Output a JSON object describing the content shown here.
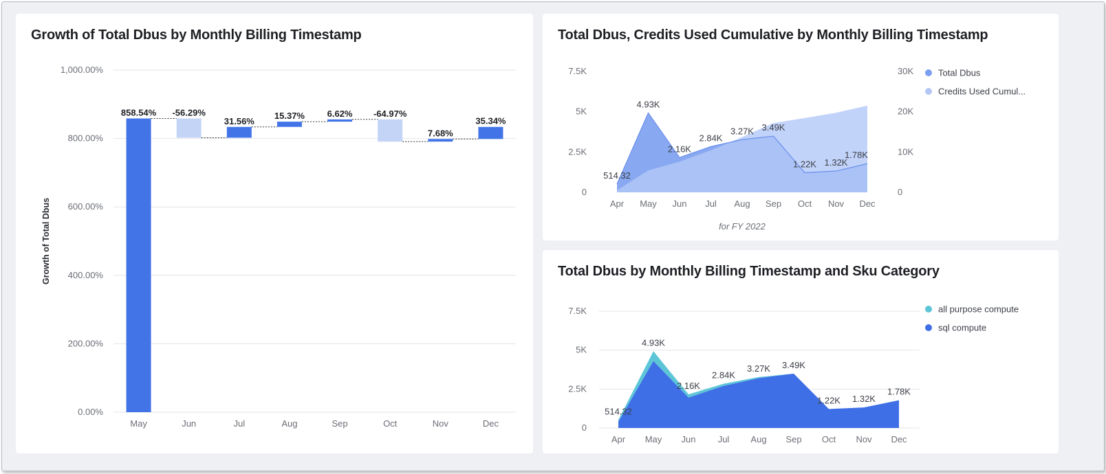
{
  "chart_data": [
    {
      "type": "waterfall",
      "title": "Growth of Total Dbus by Monthly Billing Timestamp",
      "ylabel": "Growth of Total Dbus",
      "xlabel": "",
      "ylim": [
        0,
        1000
      ],
      "yticks": [
        "0.00%",
        "200.00%",
        "400.00%",
        "600.00%",
        "800.00%",
        "1,000.00%"
      ],
      "ytick_values": [
        0,
        200,
        400,
        600,
        800,
        1000
      ],
      "categories": [
        "May",
        "Jun",
        "Jul",
        "Aug",
        "Sep",
        "Oct",
        "Nov",
        "Dec"
      ],
      "values": [
        858.54,
        -56.29,
        31.56,
        15.37,
        6.62,
        -64.97,
        7.68,
        35.34
      ],
      "labels": [
        "858.54%",
        "-56.29%",
        "31.56%",
        "15.37%",
        "6.62%",
        "-64.97%",
        "7.68%",
        "35.34%"
      ],
      "colors": {
        "positive": "#4274e8",
        "negative": "#c3d4f7"
      }
    },
    {
      "type": "area",
      "title": "Total Dbus, Credits Used Cumulative by Monthly Billing Timestamp",
      "subtitle": "for FY 2022",
      "categories": [
        "Apr",
        "May",
        "Jun",
        "Jul",
        "Aug",
        "Sep",
        "Oct",
        "Nov",
        "Dec"
      ],
      "ylim_left": [
        0,
        7500
      ],
      "yticks_left": [
        "0",
        "2.5K",
        "5K",
        "7.5K"
      ],
      "ylim_right": [
        0,
        30000
      ],
      "yticks_right": [
        "0",
        "10K",
        "20K",
        "30K"
      ],
      "series": [
        {
          "name": "Total Dbus",
          "axis": "left",
          "color": "#7b9ef0",
          "values": [
            514.32,
            4930,
            2160,
            2840,
            3270,
            3490,
            1220,
            1320,
            1780
          ],
          "labels": [
            "514.32",
            "4.93K",
            "2.16K",
            "2.84K",
            "3.27K",
            "3.49K",
            "1.22K",
            "1.32K",
            "1.78K"
          ]
        },
        {
          "name": "Credits Used Cumul...",
          "axis": "right",
          "color": "#b3c8f7",
          "values": [
            514,
            5444,
            7604,
            10444,
            13714,
            17204,
            18424,
            19744,
            21524
          ]
        }
      ],
      "legend_position": "right"
    },
    {
      "type": "area",
      "title": "Total Dbus by Monthly Billing Timestamp and Sku Category",
      "categories": [
        "Apr",
        "May",
        "Jun",
        "Jul",
        "Aug",
        "Sep",
        "Oct",
        "Nov",
        "Dec"
      ],
      "ylim": [
        0,
        7500
      ],
      "yticks": [
        "0",
        "2.5K",
        "5K",
        "7.5K"
      ],
      "stacked": true,
      "totals_labels": [
        "514.32",
        "4.93K",
        "2.16K",
        "2.84K",
        "3.27K",
        "3.49K",
        "1.22K",
        "1.32K",
        "1.78K"
      ],
      "series": [
        {
          "name": "sql compute",
          "color": "#3f6fe6",
          "values": [
            400,
            4300,
            1950,
            2700,
            3200,
            3490,
            1220,
            1320,
            1780
          ]
        },
        {
          "name": "all purpose compute",
          "color": "#5cc6d6",
          "values": [
            114.32,
            630,
            210,
            140,
            70,
            0,
            0,
            0,
            0
          ]
        }
      ],
      "legend_position": "right"
    }
  ]
}
